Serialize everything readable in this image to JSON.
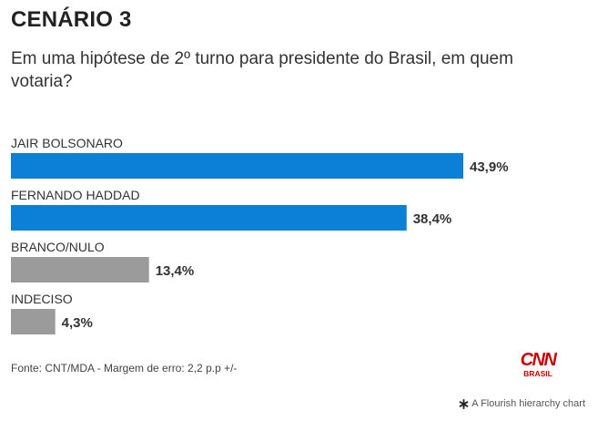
{
  "header": {
    "title": "CENÁRIO 3",
    "subtitle": "Em uma hipótese de 2º turno para presidente do Brasil, em quem votaria?"
  },
  "chart_data": {
    "type": "bar",
    "orientation": "horizontal",
    "categories": [
      "JAIR BOLSONARO",
      "FERNANDO HADDAD",
      "BRANCO/NULO",
      "INDECISO"
    ],
    "values": [
      43.9,
      38.4,
      13.4,
      4.3
    ],
    "value_labels": [
      "43,9%",
      "38,4%",
      "13,4%",
      "4,3%"
    ],
    "colors": [
      "#0c7fd6",
      "#0c7fd6",
      "#9b9b9b",
      "#9b9b9b"
    ],
    "xlim": [
      0,
      43.9
    ],
    "grid": false,
    "legend": "none"
  },
  "footer": {
    "source": "Fonte: CNT/MDA - Margem de erro: 2,2 p.p +/-",
    "logo_text": "CNN",
    "logo_subtext": "BRASIL",
    "logo_color": "#cc0000",
    "credit": "A Flourish hierarchy chart",
    "credit_icon": "flourish-asterisk-icon"
  }
}
